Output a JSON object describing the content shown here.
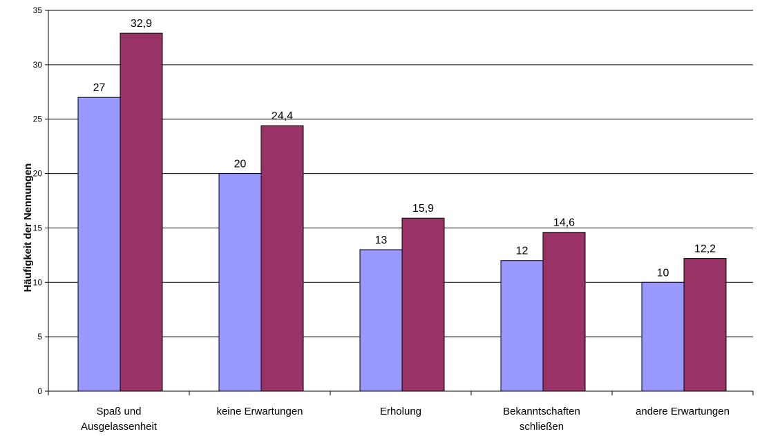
{
  "chart_data": {
    "type": "bar",
    "title": "",
    "xlabel": "",
    "ylabel": "Häufigkeit der Nennungen",
    "ylim": [
      0,
      35
    ],
    "yticks": [
      "0",
      "5",
      "10",
      "15",
      "20",
      "25",
      "30",
      "35"
    ],
    "ytick_values": [
      0,
      5,
      10,
      15,
      20,
      25,
      30,
      35
    ],
    "categories": [
      [
        "Spaß und",
        "Ausgelassenheit"
      ],
      [
        "keine Erwartungen"
      ],
      [
        "Erholung"
      ],
      [
        "Bekanntschaften",
        "schließen"
      ],
      [
        "andere Erwartungen"
      ]
    ],
    "series": [
      {
        "values": [
          27,
          20,
          13,
          12,
          10
        ],
        "labels": [
          "27",
          "20",
          "13",
          "12",
          "10"
        ],
        "color": "#9999ff"
      },
      {
        "values": [
          32.9,
          24.4,
          15.9,
          14.6,
          12.2
        ],
        "labels": [
          "32,9",
          "24,4",
          "15,9",
          "14,6",
          "12,2"
        ],
        "color": "#993366"
      }
    ],
    "grid": true,
    "legend": "none"
  }
}
